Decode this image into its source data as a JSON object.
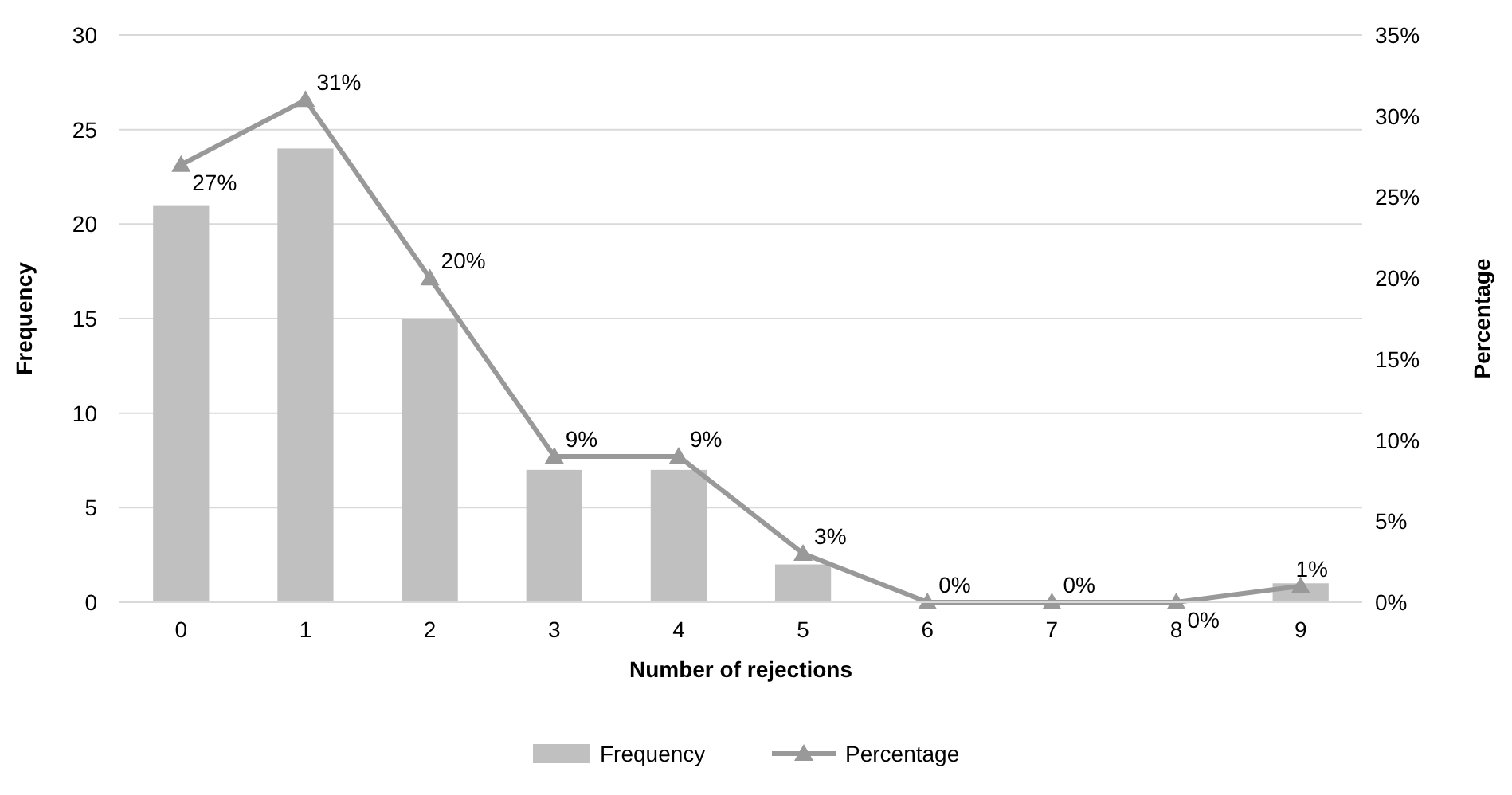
{
  "chart_data": {
    "type": "bar",
    "xlabel": "Number of rejections",
    "ylabel": "Frequency",
    "y2label": "Percentage",
    "categories": [
      "0",
      "1",
      "2",
      "3",
      "4",
      "5",
      "6",
      "7",
      "8",
      "9"
    ],
    "series": [
      {
        "name": "Frequency",
        "color": "#c0c0c0",
        "values": [
          21,
          24,
          15,
          7,
          7,
          2,
          0,
          0,
          0,
          1
        ]
      },
      {
        "name": "Percentage",
        "type": "line",
        "axis": "y2",
        "color": "#999999",
        "marker": "triangle",
        "values": [
          27,
          31,
          20,
          9,
          9,
          3,
          0,
          0,
          0,
          1
        ],
        "value_labels": [
          "27%",
          "31%",
          "20%",
          "9%",
          "9%",
          "3%",
          "0%",
          "0%",
          "0%",
          "1%"
        ]
      }
    ],
    "ylim": [
      0,
      30
    ],
    "yticks": [
      0,
      5,
      10,
      15,
      20,
      25,
      30
    ],
    "y2lim": [
      0,
      35
    ],
    "y2ticks": [
      {
        "value": 0,
        "label": "0%"
      },
      {
        "value": 5,
        "label": "5%"
      },
      {
        "value": 10,
        "label": "10%"
      },
      {
        "value": 15,
        "label": "15%"
      },
      {
        "value": 20,
        "label": "20%"
      },
      {
        "value": 25,
        "label": "25%"
      },
      {
        "value": 30,
        "label": "30%"
      },
      {
        "value": 35,
        "label": "35%"
      }
    ],
    "grid": "y",
    "legend": "bottom"
  }
}
